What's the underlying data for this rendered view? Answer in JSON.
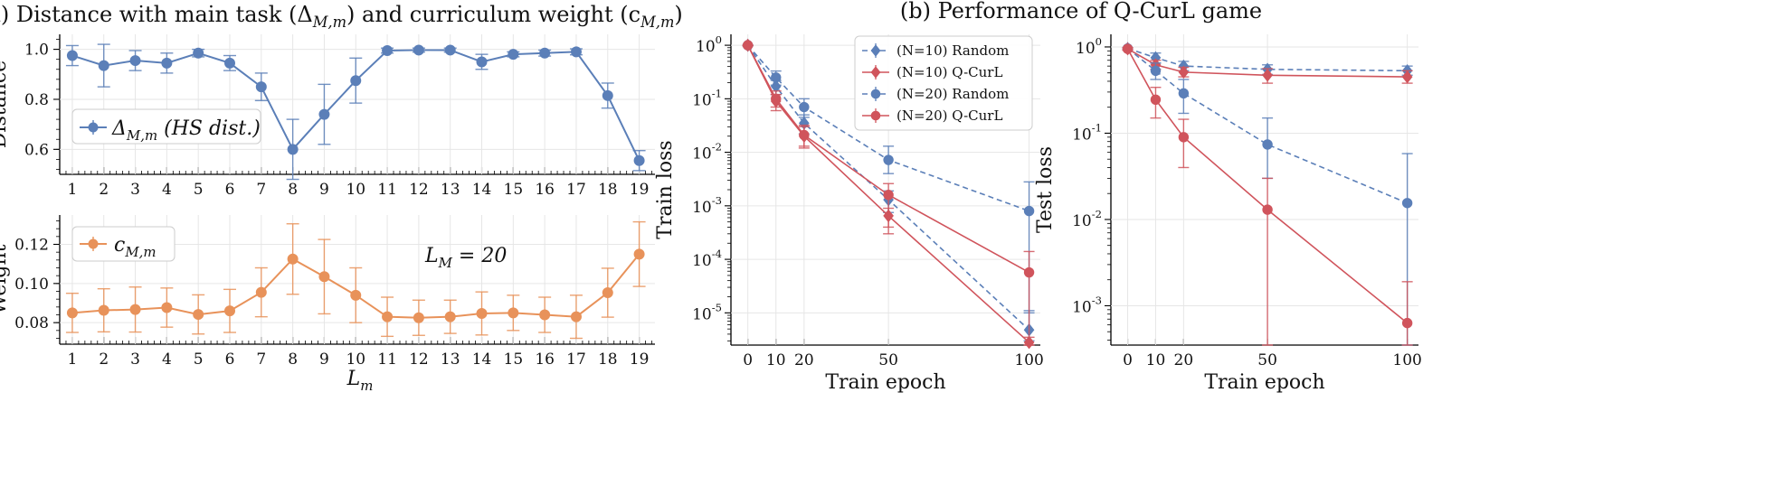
{
  "colors": {
    "blue": "#5b7fb8",
    "red": "#d0545c",
    "orange": "#e8925a"
  },
  "panel_a": {
    "title": "(a) Distance with main task (Δ_{M,m}) and curriculum weight (c_{M,m})",
    "xlabel": "L_m"
  },
  "panel_b": {
    "title": "(b) Performance of Q-CurL game"
  },
  "chart_data": [
    {
      "type": "line",
      "title": "",
      "xlabel": "",
      "ylabel": "Distance",
      "x": [
        1,
        2,
        3,
        4,
        5,
        6,
        7,
        8,
        9,
        10,
        11,
        12,
        13,
        14,
        15,
        16,
        17,
        18,
        19
      ],
      "xticks": [
        "1",
        "2",
        "3",
        "4",
        "5",
        "6",
        "7",
        "8",
        "9",
        "10",
        "11",
        "12",
        "13",
        "14",
        "15",
        "16",
        "17",
        "18",
        "19"
      ],
      "ylim": [
        0.5,
        1.06
      ],
      "yticks": [
        0.6,
        0.8,
        1.0
      ],
      "yticklabels": [
        "0.6",
        "0.8",
        "1.0"
      ],
      "grid": true,
      "legend": "center-left",
      "series": [
        {
          "name": "Δ_{M,m} (HS dist.)",
          "color": "blue",
          "values": [
            0.975,
            0.935,
            0.955,
            0.945,
            0.985,
            0.945,
            0.85,
            0.6,
            0.74,
            0.875,
            0.995,
            0.997,
            0.997,
            0.95,
            0.98,
            0.985,
            0.99,
            0.815,
            0.555
          ],
          "err": [
            0.04,
            0.085,
            0.04,
            0.04,
            0.015,
            0.03,
            0.055,
            0.12,
            0.12,
            0.09,
            0.01,
            0.008,
            0.008,
            0.03,
            0.01,
            0.012,
            0.012,
            0.05,
            0.04
          ]
        }
      ]
    },
    {
      "type": "line",
      "title": "",
      "xlabel": "L_m",
      "ylabel": "Weight",
      "x": [
        1,
        2,
        3,
        4,
        5,
        6,
        7,
        8,
        9,
        10,
        11,
        12,
        13,
        14,
        15,
        16,
        17,
        18,
        19
      ],
      "xticks": [
        "1",
        "2",
        "3",
        "4",
        "5",
        "6",
        "7",
        "8",
        "9",
        "10",
        "11",
        "12",
        "13",
        "14",
        "15",
        "16",
        "17",
        "18",
        "19"
      ],
      "ylim": [
        0.069,
        0.135
      ],
      "yticks": [
        0.08,
        0.1,
        0.12
      ],
      "yticklabels": [
        "0.08",
        "0.10",
        "0.12"
      ],
      "grid": true,
      "legend": "top-left",
      "annotation": "L_M = 20",
      "series": [
        {
          "name": "c_{M,m}",
          "color": "orange",
          "values": [
            0.085,
            0.0863,
            0.0867,
            0.0877,
            0.0842,
            0.086,
            0.0955,
            0.1125,
            0.1035,
            0.094,
            0.083,
            0.0825,
            0.083,
            0.0847,
            0.085,
            0.084,
            0.083,
            0.0953,
            0.115
          ],
          "err": [
            0.01,
            0.011,
            0.0115,
            0.01,
            0.01,
            0.011,
            0.0125,
            0.018,
            0.019,
            0.014,
            0.01,
            0.009,
            0.0085,
            0.011,
            0.009,
            0.009,
            0.011,
            0.0125,
            0.0165
          ]
        }
      ]
    },
    {
      "type": "line",
      "title": "",
      "xlabel": "Train epoch",
      "ylabel": "Train loss",
      "log_y": true,
      "x": [
        0,
        10,
        20,
        50,
        100
      ],
      "xticks": [
        "0",
        "10",
        "20",
        "50",
        "100"
      ],
      "ylim": [
        2.5e-06,
        1.6
      ],
      "yticks": [
        1e-05,
        0.0001,
        0.001,
        0.01,
        0.1,
        1
      ],
      "yticklabels": [
        "10^-5",
        "10^-4",
        "10^-3",
        "10^-2",
        "10^-1",
        "10^0"
      ],
      "grid": true,
      "legend": "top-right",
      "series": [
        {
          "name": "(N=10) Random",
          "color": "blue",
          "dash": true,
          "marker": "diamond",
          "values": [
            1.0,
            0.17,
            0.035,
            0.0013,
            4.8e-06
          ],
          "err_lo": [
            0.98,
            0.12,
            0.022,
            0.00075,
            3e-06
          ],
          "err_hi": [
            1.0,
            0.22,
            0.05,
            0.0019,
            1.1e-05
          ]
        },
        {
          "name": "(N=10) Q-CurL",
          "color": "red",
          "dash": false,
          "marker": "diamond",
          "values": [
            1.0,
            0.09,
            0.02,
            0.00065,
            2.8e-06
          ],
          "err_lo": [
            0.98,
            0.06,
            0.013,
            0.0004,
            2.4e-06
          ],
          "err_hi": [
            1.0,
            0.12,
            0.03,
            0.0009,
            3.5e-06
          ]
        },
        {
          "name": "(N=20) Random",
          "color": "blue",
          "dash": true,
          "marker": "circle",
          "values": [
            1.0,
            0.25,
            0.07,
            0.0072,
            0.0008
          ],
          "err_lo": [
            0.98,
            0.18,
            0.045,
            0.004,
            1e-05
          ],
          "err_hi": [
            1.0,
            0.33,
            0.1,
            0.013,
            0.0028
          ]
        },
        {
          "name": "(N=20) Q-CurL",
          "color": "red",
          "dash": false,
          "marker": "circle",
          "values": [
            1.0,
            0.1,
            0.021,
            0.0016,
            5.7e-05
          ],
          "err_lo": [
            0.98,
            0.07,
            0.012,
            0.0003,
            2.5e-06
          ],
          "err_hi": [
            1.0,
            0.14,
            0.032,
            0.0026,
            0.00014
          ]
        }
      ]
    },
    {
      "type": "line",
      "title": "",
      "xlabel": "Train epoch",
      "ylabel": "Test loss",
      "log_y": true,
      "x": [
        0,
        10,
        20,
        50,
        100
      ],
      "xticks": [
        "0",
        "10",
        "20",
        "50",
        "100"
      ],
      "ylim": [
        0.00035,
        1.4
      ],
      "yticks": [
        0.001,
        0.01,
        0.1,
        1
      ],
      "yticklabels": [
        "10^-3",
        "10^-2",
        "10^-1",
        "10^0"
      ],
      "grid": true,
      "series": [
        {
          "name": "(N=10) Random",
          "color": "blue",
          "dash": true,
          "marker": "diamond",
          "values": [
            0.96,
            0.75,
            0.6,
            0.55,
            0.53
          ],
          "err_lo": [
            0.93,
            0.65,
            0.53,
            0.48,
            0.47
          ],
          "err_hi": [
            0.98,
            0.85,
            0.68,
            0.62,
            0.6
          ]
        },
        {
          "name": "(N=10) Q-CurL",
          "color": "red",
          "dash": false,
          "marker": "diamond",
          "values": [
            0.95,
            0.62,
            0.51,
            0.47,
            0.45
          ],
          "err_lo": [
            0.92,
            0.55,
            0.45,
            0.38,
            0.38
          ],
          "err_hi": [
            0.98,
            0.7,
            0.58,
            0.56,
            0.53
          ]
        },
        {
          "name": "(N=20) Random",
          "color": "blue",
          "dash": true,
          "marker": "circle",
          "values": [
            0.96,
            0.53,
            0.29,
            0.074,
            0.0155
          ],
          "err_lo": [
            0.93,
            0.42,
            0.17,
            0.03,
            0.0002
          ],
          "err_hi": [
            0.98,
            0.65,
            0.42,
            0.15,
            0.058
          ]
        },
        {
          "name": "(N=20) Q-CurL",
          "color": "red",
          "dash": false,
          "marker": "circle",
          "values": [
            0.95,
            0.245,
            0.09,
            0.013,
            0.00063
          ],
          "err_lo": [
            0.92,
            0.15,
            0.04,
            0.0003,
            0.0003
          ],
          "err_hi": [
            0.98,
            0.34,
            0.145,
            0.03,
            0.0019
          ]
        }
      ]
    }
  ]
}
